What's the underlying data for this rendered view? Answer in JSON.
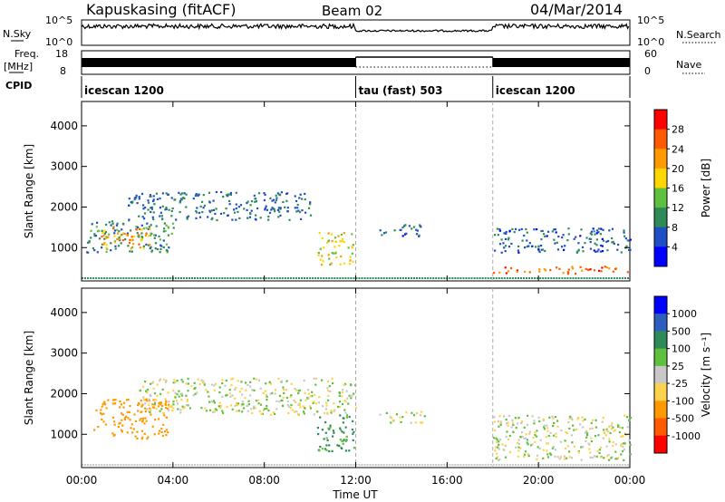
{
  "header": {
    "station": "Kapuskasing (fitACF)",
    "beam": "Beam 02",
    "date": "04/Mar/2014"
  },
  "noise_panel": {
    "left_label": "N.Sky",
    "right_label": "N.Search",
    "left_ticks": [
      "10^5",
      "10^0"
    ],
    "right_ticks": [
      "10^5",
      "10^0"
    ]
  },
  "freq_panel": {
    "left_label_1": "Freq.",
    "left_label_2": "[MHz]",
    "left_ticks": [
      "18",
      "8"
    ],
    "right_label": "Nave",
    "right_ticks": [
      "60",
      "0"
    ]
  },
  "cpid": {
    "label": "CPID",
    "segments": [
      {
        "name": "icescan 1200",
        "start": 0,
        "end": 12
      },
      {
        "name": "tau (fast) 503",
        "start": 12,
        "end": 18
      },
      {
        "name": "icescan 1200",
        "start": 18,
        "end": 24
      }
    ]
  },
  "chart_data": [
    {
      "type": "heatmap",
      "title": "",
      "xlabel": "Time UT",
      "ylabel": "Slant Range [km]",
      "xlim": [
        0,
        24
      ],
      "ylim": [
        180,
        4600
      ],
      "x_ticks": [
        "00:00",
        "04:00",
        "08:00",
        "12:00",
        "16:00",
        "20:00",
        "00:00"
      ],
      "y_ticks": [
        1000,
        2000,
        3000,
        4000
      ],
      "colorbar": {
        "label": "Power [dB]",
        "ticks": [
          4,
          8,
          12,
          16,
          20,
          24,
          28
        ],
        "colors": [
          "#0000ff",
          "#1f4fc7",
          "#2e8b57",
          "#5fbf3f",
          "#ffd700",
          "#ff9900",
          "#ff5a00",
          "#ff0000"
        ]
      },
      "regions": [
        {
          "t0": 0.2,
          "t1": 4.0,
          "r0": 900,
          "r1": 1700,
          "value": 10
        },
        {
          "t0": 0.8,
          "t1": 3.0,
          "r0": 1000,
          "r1": 1500,
          "value": 22
        },
        {
          "t0": 2.0,
          "t1": 10.0,
          "r0": 1700,
          "r1": 2400,
          "value": 8
        },
        {
          "t0": 10.3,
          "t1": 11.9,
          "r0": 600,
          "r1": 1400,
          "value": 18
        },
        {
          "t0": 13.0,
          "t1": 15.0,
          "r0": 1300,
          "r1": 1600,
          "value": 6
        },
        {
          "t0": 18.0,
          "t1": 24.0,
          "r0": 380,
          "r1": 560,
          "value": 26
        },
        {
          "t0": 18.0,
          "t1": 24.0,
          "r0": 900,
          "r1": 1500,
          "value": 7
        }
      ]
    },
    {
      "type": "heatmap",
      "title": "",
      "xlabel": "Time UT",
      "ylabel": "Slant Range [km]",
      "xlim": [
        0,
        24
      ],
      "ylim": [
        180,
        4600
      ],
      "x_ticks": [
        "00:00",
        "04:00",
        "08:00",
        "12:00",
        "16:00",
        "20:00",
        "00:00"
      ],
      "y_ticks": [
        1000,
        2000,
        3000,
        4000
      ],
      "colorbar": {
        "label": "Velocity [m s⁻¹]",
        "ticks": [
          1000,
          500,
          100,
          25,
          -25,
          -100,
          -500,
          -1000
        ],
        "colors": [
          "#0000ff",
          "#2e5fbf",
          "#2e8b57",
          "#5fbf3f",
          "#c8c8c8",
          "#ffd24d",
          "#ff9900",
          "#ff5a00",
          "#ff0000"
        ]
      },
      "regions": [
        {
          "t0": 0.5,
          "t1": 3.8,
          "r0": 900,
          "r1": 1900,
          "value": -300
        },
        {
          "t0": 2.5,
          "t1": 12.0,
          "r0": 1500,
          "r1": 2400,
          "value": 0
        },
        {
          "t0": 10.3,
          "t1": 11.9,
          "r0": 600,
          "r1": 1500,
          "value": 150
        },
        {
          "t0": 13.0,
          "t1": 15.0,
          "r0": 1300,
          "r1": 1600,
          "value": 0
        },
        {
          "t0": 18.0,
          "t1": 24.0,
          "r0": 380,
          "r1": 1500,
          "value": 0
        }
      ]
    }
  ]
}
